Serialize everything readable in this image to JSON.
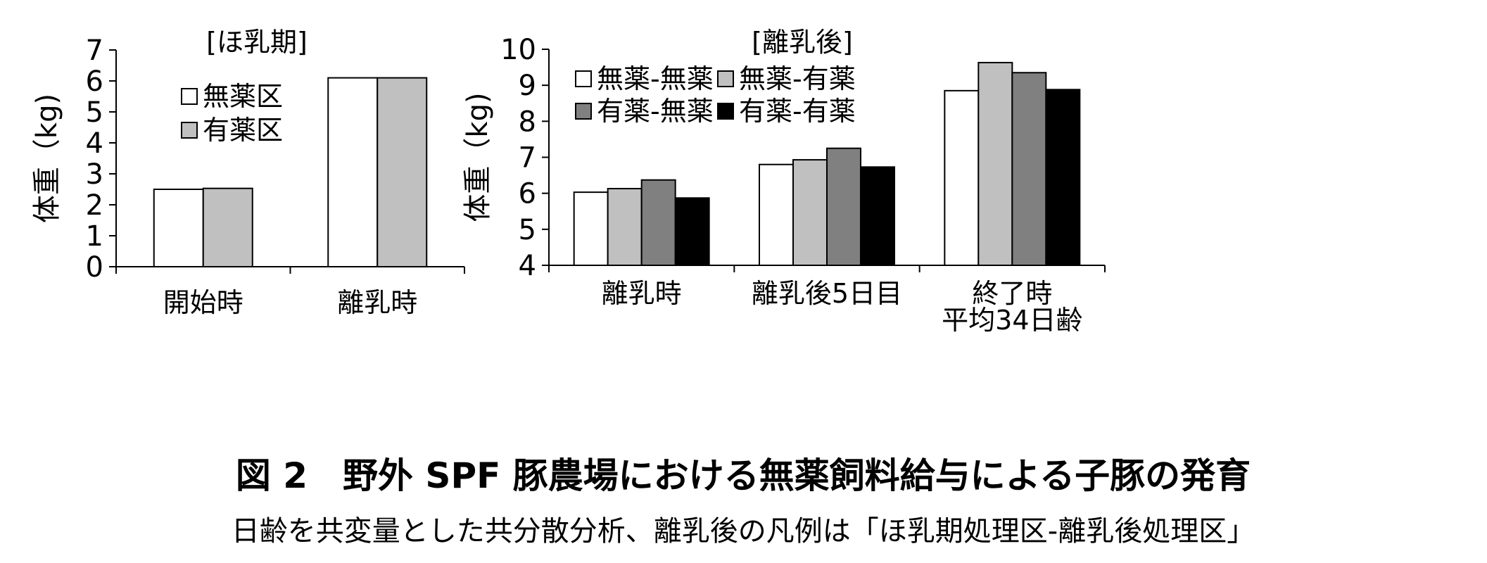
{
  "chart_data": [
    {
      "type": "bar",
      "title": "[ほ乳期]",
      "ylabel": "体重（kg)",
      "ylim": [
        0,
        7
      ],
      "yticks": [
        0,
        1,
        2,
        3,
        4,
        5,
        6,
        7
      ],
      "categories": [
        "開始時",
        "離乳時"
      ],
      "series": [
        {
          "name": "無薬区",
          "color": "#ffffff",
          "values": [
            2.5,
            6.1
          ]
        },
        {
          "name": "有薬区",
          "color": "#c0c0c0",
          "values": [
            2.53,
            6.1
          ]
        }
      ],
      "grid": false,
      "legend_position": "upper-left"
    },
    {
      "type": "bar",
      "title": "[離乳後]",
      "ylabel": "体重（kg)",
      "ylim": [
        4,
        10
      ],
      "yticks": [
        4,
        5,
        6,
        7,
        8,
        9,
        10
      ],
      "categories": [
        [
          "離乳時"
        ],
        [
          "離乳後5日目"
        ],
        [
          "終了時",
          "平均34日齢"
        ]
      ],
      "series": [
        {
          "name": "無薬-無薬",
          "color": "#ffffff",
          "values": [
            6.03,
            6.8,
            8.85
          ]
        },
        {
          "name": "無薬-有薬",
          "color": "#c0c0c0",
          "values": [
            6.13,
            6.93,
            9.63
          ]
        },
        {
          "name": "有薬-無薬",
          "color": "#808080",
          "values": [
            6.37,
            7.25,
            9.35
          ]
        },
        {
          "name": "有薬-有薬",
          "color": "#000000",
          "values": [
            5.87,
            6.73,
            8.88
          ]
        }
      ],
      "grid": false,
      "legend_position": "top-left, 2 columns"
    }
  ],
  "caption": {
    "title": "図 2　野外 SPF 豚農場における無薬飼料給与による子豚の発育",
    "note": "日齢を共変量とした共分散分析、離乳後の凡例は「ほ乳期処理区-離乳後処理区」"
  }
}
